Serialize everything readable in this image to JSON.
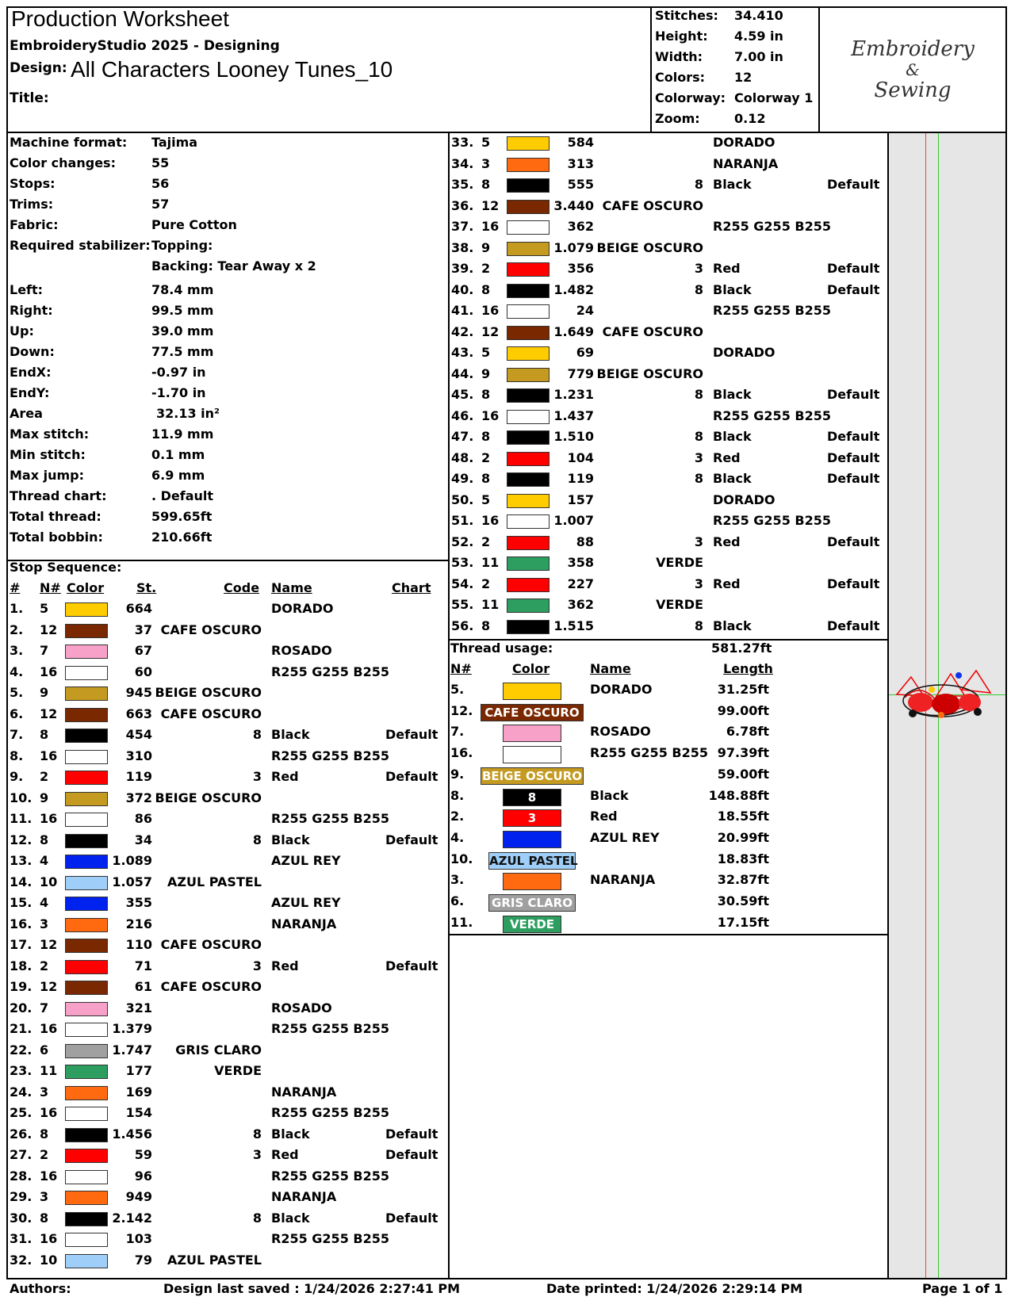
{
  "header": {
    "title": "Production Worksheet",
    "software": "EmbroideryStudio 2025 - Designing",
    "design_label": "Design:",
    "design_name": "All Characters Looney Tunes_10",
    "title_label": "Title:",
    "title_value": ""
  },
  "summary": [
    {
      "label": "Stitches:",
      "value": "34.410"
    },
    {
      "label": "Height:",
      "value": "4.59 in"
    },
    {
      "label": "Width:",
      "value": "7.00 in"
    },
    {
      "label": "Colors:",
      "value": "12"
    },
    {
      "label": "Colorway:",
      "value": "Colorway 1"
    },
    {
      "label": "Zoom:",
      "value": "0.12"
    }
  ],
  "logo": {
    "line1": "Embroidery",
    "line2": "&",
    "line3": "Sewing"
  },
  "machine": [
    {
      "label": "Machine format:",
      "value": "Tajima"
    },
    {
      "label": "Color changes:",
      "value": "55"
    },
    {
      "label": "Stops:",
      "value": "56"
    },
    {
      "label": "Trims:",
      "value": "57"
    },
    {
      "label": "Fabric:",
      "value": "Pure Cotton"
    },
    {
      "label": "Required stabilizer:",
      "value": "Topping:"
    },
    {
      "label": "",
      "value": "Backing: Tear Away x 2"
    },
    {
      "label": "Left:",
      "value": "78.4 mm"
    },
    {
      "label": "Right:",
      "value": "99.5 mm"
    },
    {
      "label": "Up:",
      "value": "39.0 mm"
    },
    {
      "label": "Down:",
      "value": "77.5 mm"
    },
    {
      "label": "EndX:",
      "value": "-0.97 in"
    },
    {
      "label": "EndY:",
      "value": "-1.70 in"
    },
    {
      "label": "Area",
      "value": "32.13 in²"
    },
    {
      "label": "Max stitch:",
      "value": "11.9 mm"
    },
    {
      "label": "Min stitch:",
      "value": "0.1 mm"
    },
    {
      "label": "Max jump:",
      "value": "6.9 mm"
    },
    {
      "label": "Thread chart:",
      "value": ". Default"
    },
    {
      "label": "Total thread:",
      "value": "599.65ft"
    },
    {
      "label": "Total bobbin:",
      "value": "210.66ft"
    }
  ],
  "stop_sequence": {
    "title": "Stop Sequence:",
    "headers": {
      "num": "#",
      "needle": "N#",
      "color": "Color",
      "st": "St.",
      "code": "Code",
      "name": "Name",
      "chart": "Chart"
    },
    "rows": [
      {
        "n": "1.",
        "needle": "5",
        "color": "#FFCC00",
        "st": "664",
        "code": "",
        "name": "DORADO",
        "chart": ""
      },
      {
        "n": "2.",
        "needle": "12",
        "color": "#7A2800",
        "st": "37",
        "code": "CAFE OSCURO",
        "name": "",
        "chart": ""
      },
      {
        "n": "3.",
        "needle": "7",
        "color": "#F7A0C8",
        "st": "67",
        "code": "",
        "name": "ROSADO",
        "chart": ""
      },
      {
        "n": "4.",
        "needle": "16",
        "color": "#FFFFFF",
        "st": "60",
        "code": "",
        "name": "R255 G255 B255",
        "chart": ""
      },
      {
        "n": "5.",
        "needle": "9",
        "color": "#C49A20",
        "st": "945",
        "code": "BEIGE OSCURO",
        "name": "",
        "chart": ""
      },
      {
        "n": "6.",
        "needle": "12",
        "color": "#7A2800",
        "st": "663",
        "code": "CAFE OSCURO",
        "name": "",
        "chart": ""
      },
      {
        "n": "7.",
        "needle": "8",
        "color": "#000000",
        "st": "454",
        "code": "8",
        "name": "Black",
        "chart": "Default"
      },
      {
        "n": "8.",
        "needle": "16",
        "color": "#FFFFFF",
        "st": "310",
        "code": "",
        "name": "R255 G255 B255",
        "chart": ""
      },
      {
        "n": "9.",
        "needle": "2",
        "color": "#FF0000",
        "st": "119",
        "code": "3",
        "name": "Red",
        "chart": "Default"
      },
      {
        "n": "10.",
        "needle": "9",
        "color": "#C49A20",
        "st": "372",
        "code": "BEIGE OSCURO",
        "name": "",
        "chart": ""
      },
      {
        "n": "11.",
        "needle": "16",
        "color": "#FFFFFF",
        "st": "86",
        "code": "",
        "name": "R255 G255 B255",
        "chart": ""
      },
      {
        "n": "12.",
        "needle": "8",
        "color": "#000000",
        "st": "34",
        "code": "8",
        "name": "Black",
        "chart": "Default"
      },
      {
        "n": "13.",
        "needle": "4",
        "color": "#0022EE",
        "st": "1.089",
        "code": "",
        "name": "AZUL REY",
        "chart": ""
      },
      {
        "n": "14.",
        "needle": "10",
        "color": "#9FCFF8",
        "st": "1.057",
        "code": "AZUL PASTEL",
        "name": "",
        "chart": ""
      },
      {
        "n": "15.",
        "needle": "4",
        "color": "#0022EE",
        "st": "355",
        "code": "",
        "name": "AZUL REY",
        "chart": ""
      },
      {
        "n": "16.",
        "needle": "3",
        "color": "#FF6A10",
        "st": "216",
        "code": "",
        "name": "NARANJA",
        "chart": ""
      },
      {
        "n": "17.",
        "needle": "12",
        "color": "#7A2800",
        "st": "110",
        "code": "CAFE OSCURO",
        "name": "",
        "chart": ""
      },
      {
        "n": "18.",
        "needle": "2",
        "color": "#FF0000",
        "st": "71",
        "code": "3",
        "name": "Red",
        "chart": "Default"
      },
      {
        "n": "19.",
        "needle": "12",
        "color": "#7A2800",
        "st": "61",
        "code": "CAFE OSCURO",
        "name": "",
        "chart": ""
      },
      {
        "n": "20.",
        "needle": "7",
        "color": "#F7A0C8",
        "st": "321",
        "code": "",
        "name": "ROSADO",
        "chart": ""
      },
      {
        "n": "21.",
        "needle": "16",
        "color": "#FFFFFF",
        "st": "1.379",
        "code": "",
        "name": "R255 G255 B255",
        "chart": ""
      },
      {
        "n": "22.",
        "needle": "6",
        "color": "#A0A0A0",
        "st": "1.747",
        "code": "GRIS CLARO",
        "name": "",
        "chart": ""
      },
      {
        "n": "23.",
        "needle": "11",
        "color": "#2E9E60",
        "st": "177",
        "code": "VERDE",
        "name": "",
        "chart": ""
      },
      {
        "n": "24.",
        "needle": "3",
        "color": "#FF6A10",
        "st": "169",
        "code": "",
        "name": "NARANJA",
        "chart": ""
      },
      {
        "n": "25.",
        "needle": "16",
        "color": "#FFFFFF",
        "st": "154",
        "code": "",
        "name": "R255 G255 B255",
        "chart": ""
      },
      {
        "n": "26.",
        "needle": "8",
        "color": "#000000",
        "st": "1.456",
        "code": "8",
        "name": "Black",
        "chart": "Default"
      },
      {
        "n": "27.",
        "needle": "2",
        "color": "#FF0000",
        "st": "59",
        "code": "3",
        "name": "Red",
        "chart": "Default"
      },
      {
        "n": "28.",
        "needle": "16",
        "color": "#FFFFFF",
        "st": "96",
        "code": "",
        "name": "R255 G255 B255",
        "chart": ""
      },
      {
        "n": "29.",
        "needle": "3",
        "color": "#FF6A10",
        "st": "949",
        "code": "",
        "name": "NARANJA",
        "chart": ""
      },
      {
        "n": "30.",
        "needle": "8",
        "color": "#000000",
        "st": "2.142",
        "code": "8",
        "name": "Black",
        "chart": "Default"
      },
      {
        "n": "31.",
        "needle": "16",
        "color": "#FFFFFF",
        "st": "103",
        "code": "",
        "name": "R255 G255 B255",
        "chart": ""
      },
      {
        "n": "32.",
        "needle": "10",
        "color": "#9FCFF8",
        "st": "79",
        "code": "AZUL PASTEL",
        "name": "",
        "chart": ""
      },
      {
        "n": "33.",
        "needle": "5",
        "color": "#FFCC00",
        "st": "584",
        "code": "",
        "name": "DORADO",
        "chart": ""
      },
      {
        "n": "34.",
        "needle": "3",
        "color": "#FF6A10",
        "st": "313",
        "code": "",
        "name": "NARANJA",
        "chart": ""
      },
      {
        "n": "35.",
        "needle": "8",
        "color": "#000000",
        "st": "555",
        "code": "8",
        "name": "Black",
        "chart": "Default"
      },
      {
        "n": "36.",
        "needle": "12",
        "color": "#7A2800",
        "st": "3.440",
        "code": "CAFE OSCURO",
        "name": "",
        "chart": ""
      },
      {
        "n": "37.",
        "needle": "16",
        "color": "#FFFFFF",
        "st": "362",
        "code": "",
        "name": "R255 G255 B255",
        "chart": ""
      },
      {
        "n": "38.",
        "needle": "9",
        "color": "#C49A20",
        "st": "1.079",
        "code": "BEIGE OSCURO",
        "name": "",
        "chart": ""
      },
      {
        "n": "39.",
        "needle": "2",
        "color": "#FF0000",
        "st": "356",
        "code": "3",
        "name": "Red",
        "chart": "Default"
      },
      {
        "n": "40.",
        "needle": "8",
        "color": "#000000",
        "st": "1.482",
        "code": "8",
        "name": "Black",
        "chart": "Default"
      },
      {
        "n": "41.",
        "needle": "16",
        "color": "#FFFFFF",
        "st": "24",
        "code": "",
        "name": "R255 G255 B255",
        "chart": ""
      },
      {
        "n": "42.",
        "needle": "12",
        "color": "#7A2800",
        "st": "1.649",
        "code": "CAFE OSCURO",
        "name": "",
        "chart": ""
      },
      {
        "n": "43.",
        "needle": "5",
        "color": "#FFCC00",
        "st": "69",
        "code": "",
        "name": "DORADO",
        "chart": ""
      },
      {
        "n": "44.",
        "needle": "9",
        "color": "#C49A20",
        "st": "779",
        "code": "BEIGE OSCURO",
        "name": "",
        "chart": ""
      },
      {
        "n": "45.",
        "needle": "8",
        "color": "#000000",
        "st": "1.231",
        "code": "8",
        "name": "Black",
        "chart": "Default"
      },
      {
        "n": "46.",
        "needle": "16",
        "color": "#FFFFFF",
        "st": "1.437",
        "code": "",
        "name": "R255 G255 B255",
        "chart": ""
      },
      {
        "n": "47.",
        "needle": "8",
        "color": "#000000",
        "st": "1.510",
        "code": "8",
        "name": "Black",
        "chart": "Default"
      },
      {
        "n": "48.",
        "needle": "2",
        "color": "#FF0000",
        "st": "104",
        "code": "3",
        "name": "Red",
        "chart": "Default"
      },
      {
        "n": "49.",
        "needle": "8",
        "color": "#000000",
        "st": "119",
        "code": "8",
        "name": "Black",
        "chart": "Default"
      },
      {
        "n": "50.",
        "needle": "5",
        "color": "#FFCC00",
        "st": "157",
        "code": "",
        "name": "DORADO",
        "chart": ""
      },
      {
        "n": "51.",
        "needle": "16",
        "color": "#FFFFFF",
        "st": "1.007",
        "code": "",
        "name": "R255 G255 B255",
        "chart": ""
      },
      {
        "n": "52.",
        "needle": "2",
        "color": "#FF0000",
        "st": "88",
        "code": "3",
        "name": "Red",
        "chart": "Default"
      },
      {
        "n": "53.",
        "needle": "11",
        "color": "#2E9E60",
        "st": "358",
        "code": "VERDE",
        "name": "",
        "chart": ""
      },
      {
        "n": "54.",
        "needle": "2",
        "color": "#FF0000",
        "st": "227",
        "code": "3",
        "name": "Red",
        "chart": "Default"
      },
      {
        "n": "55.",
        "needle": "11",
        "color": "#2E9E60",
        "st": "362",
        "code": "VERDE",
        "name": "",
        "chart": ""
      },
      {
        "n": "56.",
        "needle": "8",
        "color": "#000000",
        "st": "1.515",
        "code": "8",
        "name": "Black",
        "chart": "Default"
      }
    ]
  },
  "thread_usage": {
    "title": "Thread usage:",
    "total": "581.27ft",
    "headers": {
      "needle": "N#",
      "color": "Color",
      "name": "Name",
      "length": "Length"
    },
    "rows": [
      {
        "needle": "5.",
        "color": "#FFCC00",
        "chip": "",
        "name": "DORADO",
        "length": "31.25ft",
        "wide": false
      },
      {
        "needle": "12.",
        "color": "#7A2800",
        "chip": "CAFE OSCURO",
        "name": "",
        "length": "99.00ft",
        "wide": true
      },
      {
        "needle": "7.",
        "color": "#F7A0C8",
        "chip": "",
        "name": "ROSADO",
        "length": "6.78ft",
        "wide": false
      },
      {
        "needle": "16.",
        "color": "#FFFFFF",
        "chip": "",
        "name": "R255 G255 B255",
        "length": "97.39ft",
        "wide": false
      },
      {
        "needle": "9.",
        "color": "#C49A20",
        "chip": "BEIGE OSCURO",
        "name": "",
        "length": "59.00ft",
        "wide": true
      },
      {
        "needle": "8.",
        "color": "#000000",
        "chip": "8",
        "name": "Black",
        "length": "148.88ft",
        "wide": false
      },
      {
        "needle": "2.",
        "color": "#FF0000",
        "chip": "3",
        "name": "Red",
        "length": "18.55ft",
        "wide": false
      },
      {
        "needle": "4.",
        "color": "#0022EE",
        "chip": "",
        "name": "AZUL REY",
        "length": "20.99ft",
        "wide": false
      },
      {
        "needle": "10.",
        "color": "#9FCFF8",
        "chip": "AZUL PASTEL",
        "name": "",
        "length": "18.83ft",
        "wide": "mid"
      },
      {
        "needle": "3.",
        "color": "#FF6A10",
        "chip": "",
        "name": "NARANJA",
        "length": "32.87ft",
        "wide": false
      },
      {
        "needle": "6.",
        "color": "#A0A0A0",
        "chip": "GRIS CLARO",
        "name": "",
        "length": "30.59ft",
        "wide": "mid"
      },
      {
        "needle": "11.",
        "color": "#2E9E60",
        "chip": "VERDE",
        "name": "",
        "length": "17.15ft",
        "wide": false
      }
    ]
  },
  "footer": {
    "authors": "Authors:",
    "saved": "Design last saved : 1/24/2026 2:27:41 PM",
    "printed": "Date printed: 1/24/2026 2:29:14 PM",
    "page": "Page 1 of 1"
  }
}
